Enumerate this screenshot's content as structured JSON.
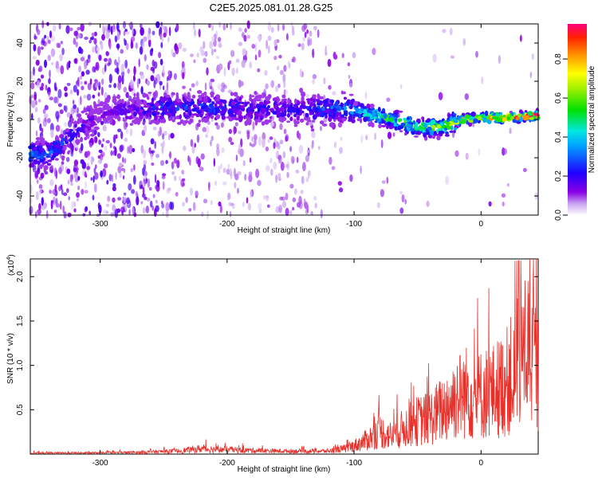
{
  "title": "C2E5.2025.081.01.28.G25",
  "chart_data": [
    {
      "type": "heatmap",
      "xlabel": "Height of straight line (km)",
      "ylabel": "Frequency (Hz)",
      "xlim": [
        -355,
        45
      ],
      "ylim": [
        -50,
        50
      ],
      "xticks": [
        -300,
        -200,
        -100,
        0
      ],
      "yticks": [
        -40,
        -20,
        0,
        20,
        40
      ],
      "colorbar": {
        "label": "Normalized spectral amplitude",
        "range": [
          0,
          0.98
        ],
        "ticks": [
          "0.0",
          "0.2",
          "0.4",
          "0.6",
          "0.8"
        ],
        "colormap": "rainbow (purple-blue-cyan-green-yellow-red)"
      },
      "ridge": {
        "description": "dominant frequency band near 0 Hz",
        "points": [
          {
            "x": -340,
            "y": -18,
            "amplitude": 0.3
          },
          {
            "x": -300,
            "y": 4,
            "amplitude": 0.12
          },
          {
            "x": -250,
            "y": 6,
            "amplitude": 0.25
          },
          {
            "x": -200,
            "y": 6,
            "amplitude": 0.25
          },
          {
            "x": -150,
            "y": 5,
            "amplitude": 0.2
          },
          {
            "x": -110,
            "y": 6,
            "amplitude": 0.3
          },
          {
            "x": -80,
            "y": 2,
            "amplitude": 0.5
          },
          {
            "x": -50,
            "y": -4,
            "amplitude": 0.55
          },
          {
            "x": -30,
            "y": -4,
            "amplitude": 0.6
          },
          {
            "x": -15,
            "y": 0,
            "amplitude": 0.75
          },
          {
            "x": 0,
            "y": 1,
            "amplitude": 0.85
          },
          {
            "x": 20,
            "y": 1,
            "amplitude": 0.9
          },
          {
            "x": 45,
            "y": 2,
            "amplitude": 0.95
          }
        ]
      }
    },
    {
      "type": "line",
      "xlabel": "Height of straight line (km)",
      "ylabel": "SNR (10 * v/v)",
      "y_multiplier_label": "(x10",
      "y_multiplier_exp": "4",
      "y_multiplier_close": ")",
      "xlim": [
        -355,
        45
      ],
      "ylim": [
        0,
        2.2
      ],
      "xticks": [
        -300,
        -200,
        -100,
        0
      ],
      "yticks": [
        0.5,
        1.0,
        1.5,
        2.0
      ],
      "ytick_labels": [
        "0.5",
        "1.0",
        "1.5",
        "2.0"
      ],
      "color": "#e8302a",
      "series": [
        {
          "x": [
            -355,
            -330,
            -300,
            -270,
            -240,
            -220,
            -200,
            -180,
            -160,
            -140,
            -120,
            -105,
            -95,
            -85,
            -80,
            -70,
            -60,
            -50,
            -40,
            -30,
            -20,
            -15,
            -10,
            -5,
            0,
            10,
            20,
            30,
            35,
            40,
            45
          ],
          "y": [
            0.02,
            0.02,
            0.02,
            0.03,
            0.05,
            0.09,
            0.07,
            0.06,
            0.05,
            0.05,
            0.05,
            0.1,
            0.18,
            0.3,
            0.38,
            0.3,
            0.45,
            0.55,
            0.6,
            0.75,
            0.95,
            1.0,
            1.05,
            0.9,
            1.0,
            1.05,
            1.2,
            1.5,
            1.8,
            1.7,
            1.35
          ]
        }
      ]
    }
  ]
}
